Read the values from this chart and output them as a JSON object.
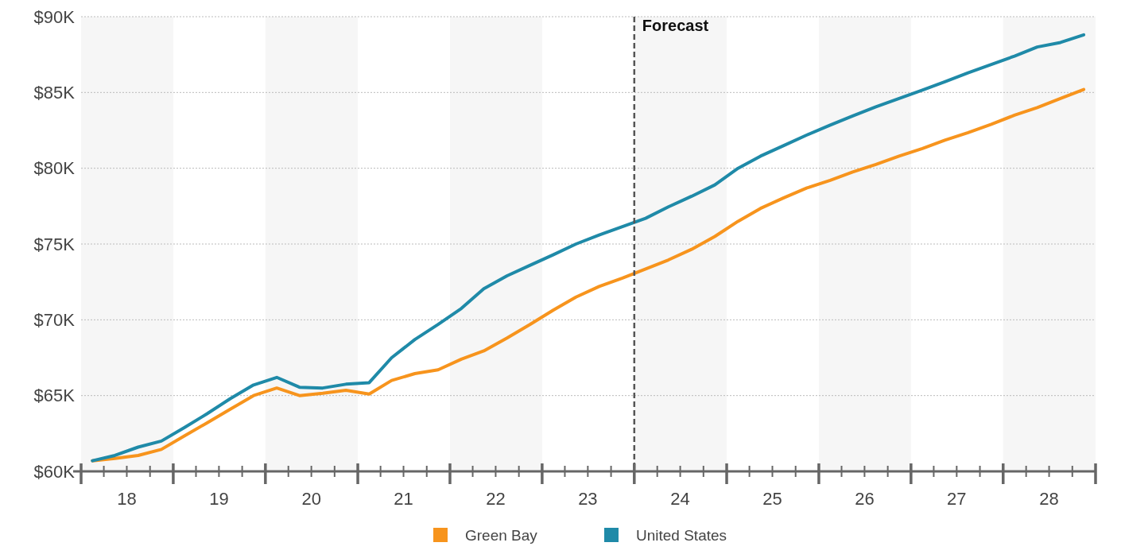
{
  "chart_data": {
    "type": "line",
    "x": [
      "2018-02-15",
      "2018-05-15",
      "2018-08-15",
      "2018-11-15",
      "2019-02-15",
      "2019-05-15",
      "2019-08-15",
      "2019-11-15",
      "2020-02-15",
      "2020-05-15",
      "2020-08-15",
      "2020-11-15",
      "2021-02-15",
      "2021-05-15",
      "2021-08-15",
      "2021-11-15",
      "2022-02-15",
      "2022-05-15",
      "2022-08-15",
      "2022-11-15",
      "2023-02-15",
      "2023-05-15",
      "2023-08-15",
      "2023-11-15",
      "2024-02-15",
      "2024-05-15",
      "2024-08-15",
      "2024-11-15",
      "2025-02-15",
      "2025-05-15",
      "2025-08-15",
      "2025-11-15",
      "2026-02-15",
      "2026-05-15",
      "2026-08-15",
      "2026-11-15",
      "2027-02-15",
      "2027-05-15",
      "2027-08-15",
      "2027-11-15",
      "2028-02-15",
      "2028-05-15",
      "2028-08-15",
      "2028-11-15"
    ],
    "series": [
      {
        "name": "Green Bay",
        "color": "#f7941d",
        "values": [
          60700,
          60850,
          61050,
          61450,
          62350,
          63200,
          64100,
          65000,
          65500,
          65000,
          65150,
          65350,
          65100,
          66000,
          66450,
          66700,
          67400,
          67950,
          68800,
          69700,
          70650,
          71500,
          72200,
          72750,
          73350,
          73950,
          74650,
          75500,
          76500,
          77350,
          78050,
          78700,
          79200,
          79750,
          80250,
          80800,
          81300,
          81850,
          82350,
          82900,
          83500,
          84000,
          84600,
          85200
        ]
      },
      {
        "name": "United States",
        "color": "#1f8aa8",
        "values": [
          60700,
          61050,
          61600,
          62000,
          62900,
          63800,
          64800,
          65700,
          66200,
          65550,
          65500,
          65750,
          65850,
          67500,
          68700,
          69700,
          70750,
          72050,
          72900,
          73600,
          74300,
          75000,
          75600,
          76150,
          76700,
          77450,
          78150,
          78900,
          80000,
          80800,
          81500,
          82200,
          82850,
          83450,
          84050,
          84600,
          85150,
          85700,
          86300,
          86850,
          87400,
          88000,
          88300,
          88800
        ]
      }
    ],
    "xlim": [
      "2018-01-01",
      "2029-01-01"
    ],
    "xticks": [
      {
        "value": "2018-01-01",
        "label": null
      },
      {
        "value": "2018-04-01",
        "label": null
      },
      {
        "value": "2018-07-01",
        "label": "18"
      },
      {
        "value": "2018-10-01",
        "label": null
      },
      {
        "value": "2019-01-01",
        "label": null
      },
      {
        "value": "2019-04-01",
        "label": null
      },
      {
        "value": "2019-07-01",
        "label": "19"
      },
      {
        "value": "2019-10-01",
        "label": null
      },
      {
        "value": "2020-01-01",
        "label": null
      },
      {
        "value": "2020-04-01",
        "label": null
      },
      {
        "value": "2020-07-01",
        "label": "20"
      },
      {
        "value": "2020-10-01",
        "label": null
      },
      {
        "value": "2021-01-01",
        "label": null
      },
      {
        "value": "2021-04-01",
        "label": null
      },
      {
        "value": "2021-07-01",
        "label": "21"
      },
      {
        "value": "2021-10-01",
        "label": null
      },
      {
        "value": "2022-01-01",
        "label": null
      },
      {
        "value": "2022-04-01",
        "label": null
      },
      {
        "value": "2022-07-01",
        "label": "22"
      },
      {
        "value": "2022-10-01",
        "label": null
      },
      {
        "value": "2023-01-01",
        "label": null
      },
      {
        "value": "2023-04-01",
        "label": null
      },
      {
        "value": "2023-07-01",
        "label": "23"
      },
      {
        "value": "2023-10-01",
        "label": null
      },
      {
        "value": "2024-01-01",
        "label": null
      },
      {
        "value": "2024-04-01",
        "label": null
      },
      {
        "value": "2024-07-01",
        "label": "24"
      },
      {
        "value": "2024-10-01",
        "label": null
      },
      {
        "value": "2025-01-01",
        "label": null
      },
      {
        "value": "2025-04-01",
        "label": null
      },
      {
        "value": "2025-07-01",
        "label": "25"
      },
      {
        "value": "2025-10-01",
        "label": null
      },
      {
        "value": "2026-01-01",
        "label": null
      },
      {
        "value": "2026-04-01",
        "label": null
      },
      {
        "value": "2026-07-01",
        "label": "26"
      },
      {
        "value": "2026-10-01",
        "label": null
      },
      {
        "value": "2027-01-01",
        "label": null
      },
      {
        "value": "2027-04-01",
        "label": null
      },
      {
        "value": "2027-07-01",
        "label": "27"
      },
      {
        "value": "2027-10-01",
        "label": null
      },
      {
        "value": "2028-01-01",
        "label": null
      },
      {
        "value": "2028-04-01",
        "label": null
      },
      {
        "value": "2028-07-01",
        "label": "28"
      },
      {
        "value": "2028-10-01",
        "label": null
      },
      {
        "value": "2029-01-01",
        "label": null
      }
    ],
    "ylim": [
      60000,
      90000
    ],
    "yticks": [
      {
        "value": 60000,
        "label": "$60K"
      },
      {
        "value": 65000,
        "label": "$65K"
      },
      {
        "value": 70000,
        "label": "$70K"
      },
      {
        "value": 75000,
        "label": "$75K"
      },
      {
        "value": 80000,
        "label": "$80K"
      },
      {
        "value": 85000,
        "label": "$85K"
      },
      {
        "value": 90000,
        "label": "$90K"
      }
    ],
    "grid": "y",
    "legend": "bottom",
    "line_style": "solid",
    "ref_lines": [
      {
        "axis": "x",
        "value": "2024-01-01",
        "label": "Forecast",
        "color": "#555555",
        "line_style": "dashed"
      }
    ],
    "bands": [
      {
        "axis": "x",
        "from": "2018-01-01",
        "to": "2019-01-01",
        "color": "#f6f6f6"
      },
      {
        "axis": "x",
        "from": "2020-01-01",
        "to": "2021-01-01",
        "color": "#f6f6f6"
      },
      {
        "axis": "x",
        "from": "2022-01-01",
        "to": "2023-01-01",
        "color": "#f6f6f6"
      },
      {
        "axis": "x",
        "from": "2024-01-01",
        "to": "2025-01-01",
        "color": "#f6f6f6"
      },
      {
        "axis": "x",
        "from": "2026-01-01",
        "to": "2027-01-01",
        "color": "#f6f6f6"
      },
      {
        "axis": "x",
        "from": "2028-01-01",
        "to": "2029-01-01",
        "color": "#f6f6f6"
      }
    ]
  }
}
